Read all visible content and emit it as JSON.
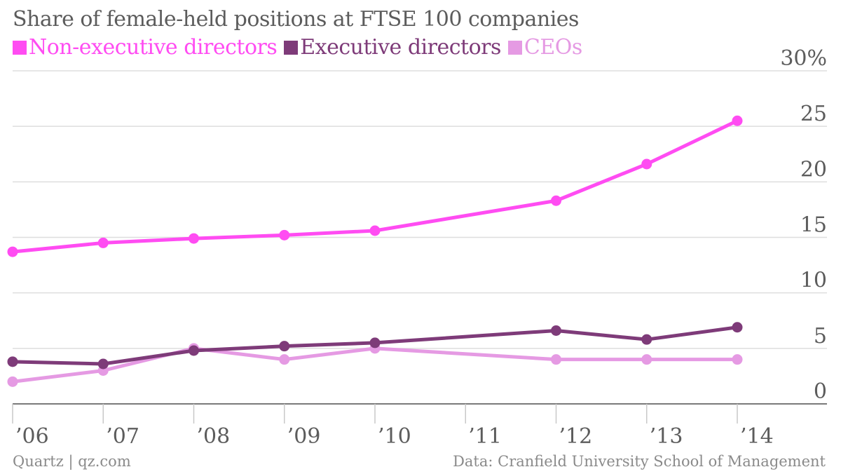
{
  "chart_data": {
    "type": "line",
    "title": "Share of female-held positions at FTSE 100 companies",
    "x": [
      2006,
      2007,
      2008,
      2009,
      2010,
      2011,
      2012,
      2013,
      2014
    ],
    "x_tick_labels": [
      "’06",
      "’07",
      "’08",
      "’09",
      "’10",
      "’11",
      "’12",
      "’13",
      "’14"
    ],
    "y_tick_labels": [
      "0",
      "5",
      "10",
      "15",
      "20",
      "25",
      "30%"
    ],
    "ylim": [
      0,
      30
    ],
    "grid": true,
    "legend_position": "top-left",
    "series": [
      {
        "name": "Non-executive directors",
        "color": "#ff4cf2",
        "x": [
          2006,
          2007,
          2008,
          2009,
          2010,
          2012,
          2013,
          2014
        ],
        "values": [
          13.7,
          14.5,
          14.9,
          15.2,
          15.6,
          18.3,
          21.6,
          25.5
        ]
      },
      {
        "name": "Executive directors",
        "color": "#7e3b79",
        "x": [
          2006,
          2007,
          2008,
          2009,
          2010,
          2012,
          2013,
          2014
        ],
        "values": [
          3.8,
          3.6,
          4.8,
          5.2,
          5.5,
          6.6,
          5.8,
          6.9
        ]
      },
      {
        "name": "CEOs",
        "color": "#e59ae3",
        "x": [
          2006,
          2007,
          2008,
          2009,
          2010,
          2012,
          2013,
          2014
        ],
        "values": [
          2.0,
          3.0,
          5.0,
          4.0,
          5.0,
          4.0,
          4.0,
          4.0
        ]
      }
    ]
  },
  "footer": {
    "source_left": "Quartz | qz.com",
    "source_right": "Data: Cranfield University School of Management"
  }
}
